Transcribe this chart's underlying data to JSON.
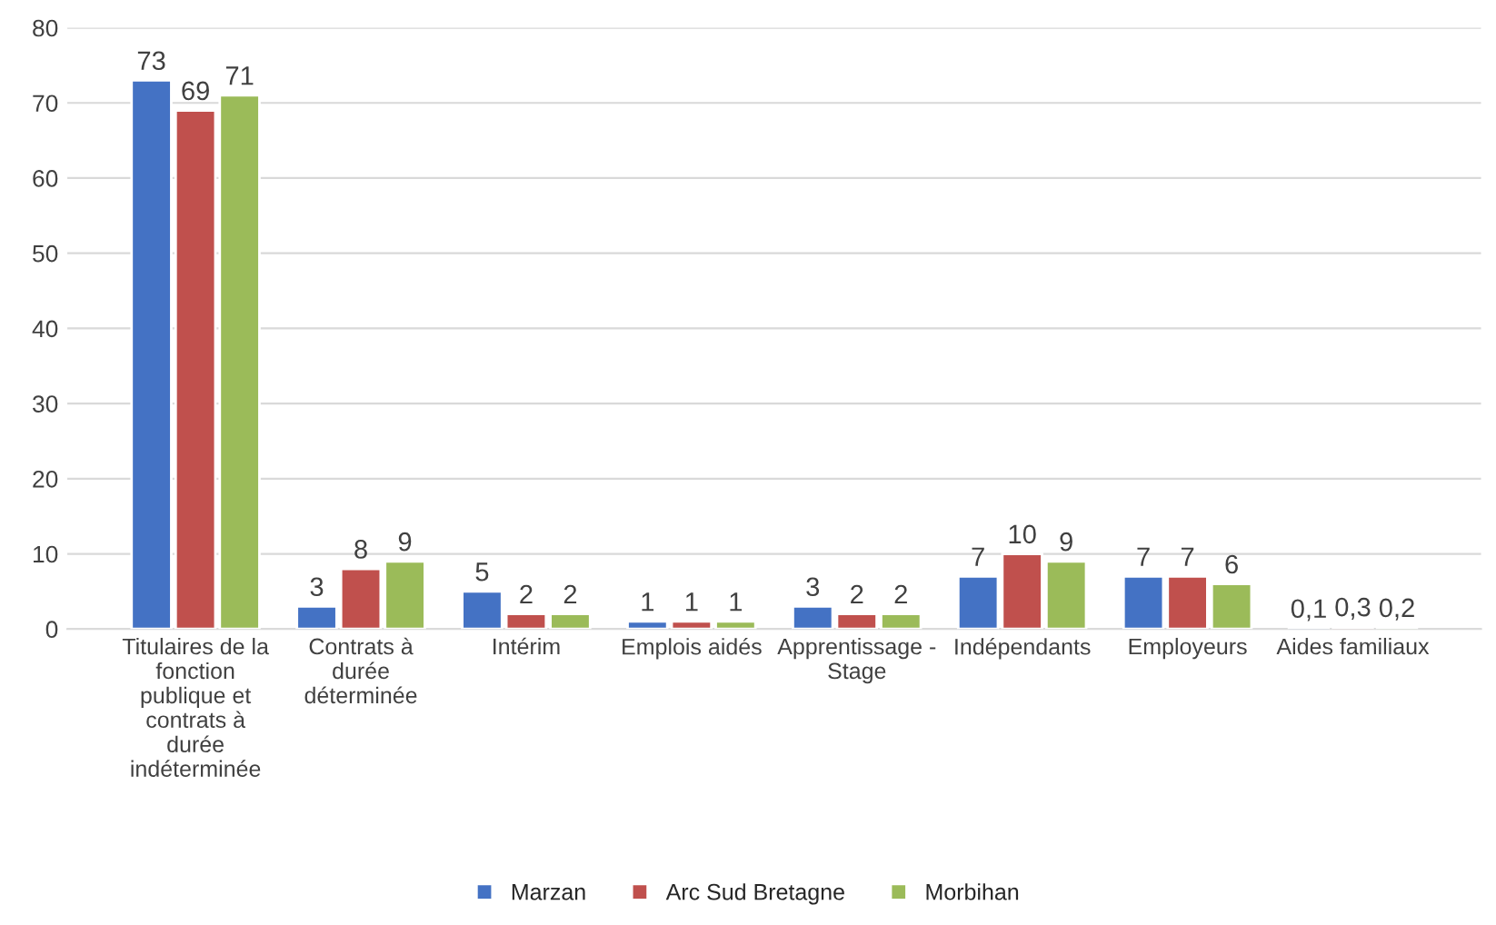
{
  "chart_data": {
    "type": "bar",
    "categories": [
      "Titulaires de la\nfonction\npublique et\ncontrats à\ndurée\nindéterminée",
      "Contrats à\ndurée\ndéterminée",
      "Intérim",
      "Emplois aidés",
      "Apprentissage -\nStage",
      "Indépendants",
      "Employeurs",
      "Aides familiaux"
    ],
    "series": [
      {
        "name": "Marzan",
        "color": "#4472c4",
        "values": [
          73,
          3,
          5,
          1,
          3,
          7,
          7,
          0.1
        ],
        "value_labels": [
          "73",
          "3",
          "5",
          "1",
          "3",
          "7",
          "7",
          "0,1"
        ]
      },
      {
        "name": "Arc Sud Bretagne",
        "color": "#c0504d",
        "values": [
          69,
          8,
          2,
          1,
          2,
          10,
          7,
          0.3
        ],
        "value_labels": [
          "69",
          "8",
          "2",
          "1",
          "2",
          "10",
          "7",
          "0,3"
        ]
      },
      {
        "name": "Morbihan",
        "color": "#9bbb59",
        "values": [
          71,
          9,
          2,
          1,
          2,
          9,
          6,
          0.2
        ],
        "value_labels": [
          "71",
          "9",
          "2",
          "1",
          "2",
          "9",
          "6",
          "0,2"
        ]
      }
    ],
    "ylim": [
      0,
      80
    ],
    "yticks": [
      0,
      10,
      20,
      30,
      40,
      50,
      60,
      70,
      80
    ],
    "grid": "y",
    "legend": "bottom"
  }
}
